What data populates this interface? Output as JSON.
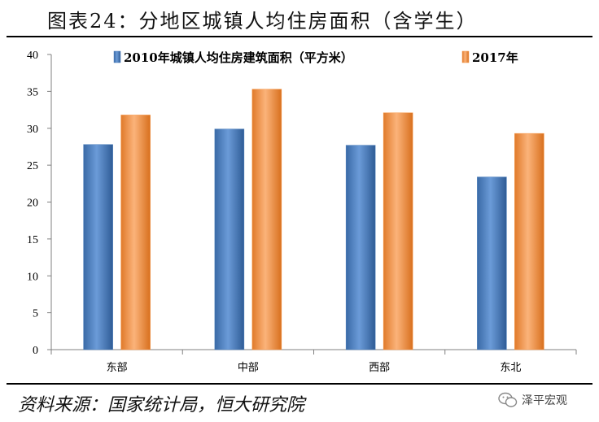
{
  "title": "图表24：分地区城镇人均住房面积（含学生）",
  "source": "资料来源：国家统计局，恒大研究院",
  "watermark": {
    "icon": "wechat-icon",
    "text": "泽平宏观"
  },
  "colors": {
    "series1": "#4A7EBB",
    "series2": "#F79646"
  },
  "chart_data": {
    "type": "bar",
    "title": "",
    "xlabel": "",
    "ylabel": "",
    "categories": [
      "东部",
      "中部",
      "西部",
      "东北"
    ],
    "series": [
      {
        "name": "2010年城镇人均住房建筑面积（平方米）",
        "values": [
          27.8,
          29.9,
          27.7,
          23.4
        ]
      },
      {
        "name": "2017年",
        "values": [
          31.8,
          35.3,
          32.1,
          29.3
        ]
      }
    ],
    "ylim": [
      0,
      40
    ],
    "yticks": [
      0,
      5,
      10,
      15,
      20,
      25,
      30,
      35,
      40
    ],
    "grid": false,
    "legend": "top"
  }
}
